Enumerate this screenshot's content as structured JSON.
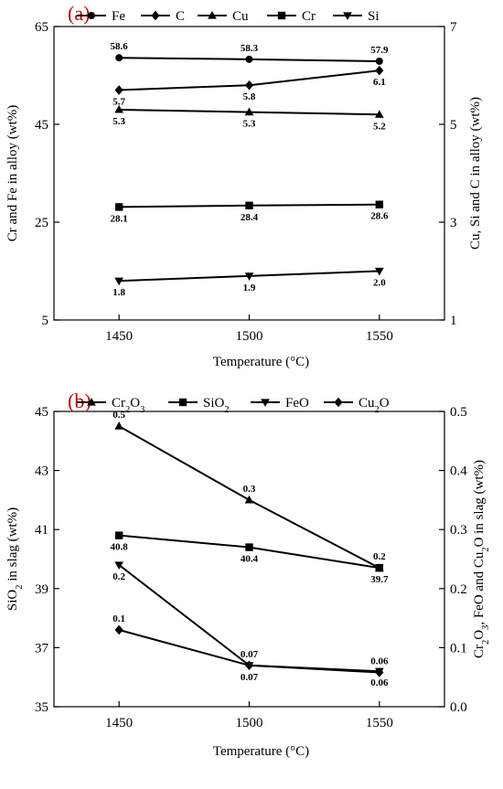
{
  "chart_data": [
    {
      "type": "line",
      "panel_label": "(a)",
      "xlabel": "Temperature (°C)",
      "ylabel_left": "Cr and Fe in alloy (wt%)",
      "ylabel_right": "Cu, Si and C in alloy (wt%)",
      "x": [
        1450,
        1500,
        1550
      ],
      "x_ticks": [
        "1450",
        "1500",
        "1550"
      ],
      "xlim": [
        1425,
        1575
      ],
      "ylim_left": [
        5,
        65
      ],
      "yticks_left": [
        "5",
        "25",
        "45",
        "65"
      ],
      "ylim_right": [
        1,
        7
      ],
      "yticks_right": [
        "1",
        "3",
        "5",
        "7"
      ],
      "legend_position": "top",
      "series": [
        {
          "name": "Fe",
          "marker": "circle",
          "axis": "left",
          "values": [
            58.6,
            58.3,
            57.9
          ],
          "labels": [
            "58.6",
            "58.3",
            "57.9"
          ],
          "label_pos": "above"
        },
        {
          "name": "C",
          "marker": "diamond",
          "axis": "right",
          "values": [
            5.7,
            5.8,
            6.1
          ],
          "labels": [
            "5.7",
            "5.8",
            "6.1"
          ],
          "label_pos": "below"
        },
        {
          "name": "Cu",
          "marker": "triangle-up",
          "axis": "right",
          "values": [
            5.3,
            5.25,
            5.2
          ],
          "labels": [
            "5.3",
            "5.3",
            "5.2"
          ],
          "label_pos": "below"
        },
        {
          "name": "Cr",
          "marker": "square",
          "axis": "left",
          "values": [
            28.1,
            28.4,
            28.6
          ],
          "labels": [
            "28.1",
            "28.4",
            "28.6"
          ],
          "label_pos": "below"
        },
        {
          "name": "Si",
          "marker": "triangle-down",
          "axis": "right",
          "values": [
            1.8,
            1.9,
            2.0
          ],
          "labels": [
            "1.8",
            "1.9",
            "2.0"
          ],
          "label_pos": "below"
        }
      ]
    },
    {
      "type": "line",
      "panel_label": "(b)",
      "xlabel": "Temperature (°C)",
      "ylabel_left": "SiO2 in slag (wt%)",
      "ylabel_right": "Cr2O3, FeO and Cu2O in slag (wt%)",
      "x": [
        1450,
        1500,
        1550
      ],
      "x_ticks": [
        "1450",
        "1500",
        "1550"
      ],
      "xlim": [
        1425,
        1575
      ],
      "ylim_left": [
        35,
        45
      ],
      "yticks_left": [
        "35",
        "37",
        "39",
        "41",
        "43",
        "45"
      ],
      "ylim_right": [
        0,
        0.5
      ],
      "yticks_right": [
        "0.0",
        "0.1",
        "0.2",
        "0.3",
        "0.4",
        "0.5"
      ],
      "legend_position": "top",
      "series": [
        {
          "name": "Cr2O3",
          "marker": "triangle-up",
          "axis": "right",
          "values": [
            0.475,
            0.35,
            0.235
          ],
          "labels": [
            "0.5",
            "0.3",
            "0.2"
          ],
          "label_pos": "above"
        },
        {
          "name": "SiO2",
          "marker": "square",
          "axis": "left",
          "values": [
            40.8,
            40.4,
            39.7
          ],
          "labels": [
            "40.8",
            "40.4",
            "39.7"
          ],
          "label_pos": "below"
        },
        {
          "name": "FeO",
          "marker": "triangle-down",
          "axis": "right",
          "values": [
            0.24,
            0.07,
            0.06
          ],
          "labels": [
            "0.2",
            "0.07",
            "0.06"
          ],
          "label_pos": "below"
        },
        {
          "name": "Cu2O",
          "marker": "diamond",
          "axis": "right",
          "values": [
            0.13,
            0.07,
            0.058
          ],
          "labels": [
            "0.1",
            "0.07",
            "0.06"
          ],
          "label_pos": "above"
        }
      ]
    }
  ]
}
